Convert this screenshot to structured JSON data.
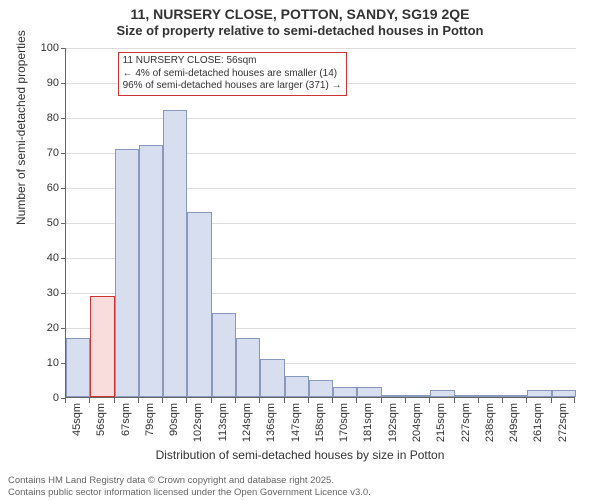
{
  "title": {
    "line1": "11, NURSERY CLOSE, POTTON, SANDY, SG19 2QE",
    "line2": "Size of property relative to semi-detached houses in Potton"
  },
  "chart": {
    "type": "histogram",
    "background_color": "#ffffff",
    "grid_color": "#dddddd",
    "axis_color": "#666666",
    "bar_fill": "#d6deef",
    "bar_border": "#8899bb",
    "highlight_fill": "#f9dcdc",
    "highlight_border": "#cc3333",
    "annotation_border": "#cc3333",
    "y": {
      "title": "Number of semi-detached properties",
      "min": 0,
      "max": 100,
      "step": 10
    },
    "x": {
      "title": "Distribution of semi-detached houses by size in Potton",
      "labels": [
        "45sqm",
        "56sqm",
        "67sqm",
        "79sqm",
        "90sqm",
        "102sqm",
        "113sqm",
        "124sqm",
        "136sqm",
        "147sqm",
        "158sqm",
        "170sqm",
        "181sqm",
        "192sqm",
        "204sqm",
        "215sqm",
        "227sqm",
        "238sqm",
        "249sqm",
        "261sqm",
        "272sqm"
      ]
    },
    "bars": [
      17,
      29,
      71,
      72,
      82,
      53,
      24,
      17,
      11,
      6,
      5,
      3,
      3,
      0,
      0,
      2,
      0,
      0,
      0,
      2,
      2
    ],
    "highlight_index": 1,
    "annotation": {
      "line1": "11 NURSERY CLOSE: 56sqm",
      "line2": "← 4% of semi-detached houses are smaller (14)",
      "line3": "96% of semi-detached houses are larger (371) →"
    }
  },
  "footer": {
    "line1": "Contains HM Land Registry data © Crown copyright and database right 2025.",
    "line2": "Contains public sector information licensed under the Open Government Licence v3.0."
  },
  "fontsize": {
    "title": 14,
    "subtitle": 13,
    "axis_title": 12,
    "tick": 11,
    "annotation": 10,
    "footer": 9.5
  }
}
